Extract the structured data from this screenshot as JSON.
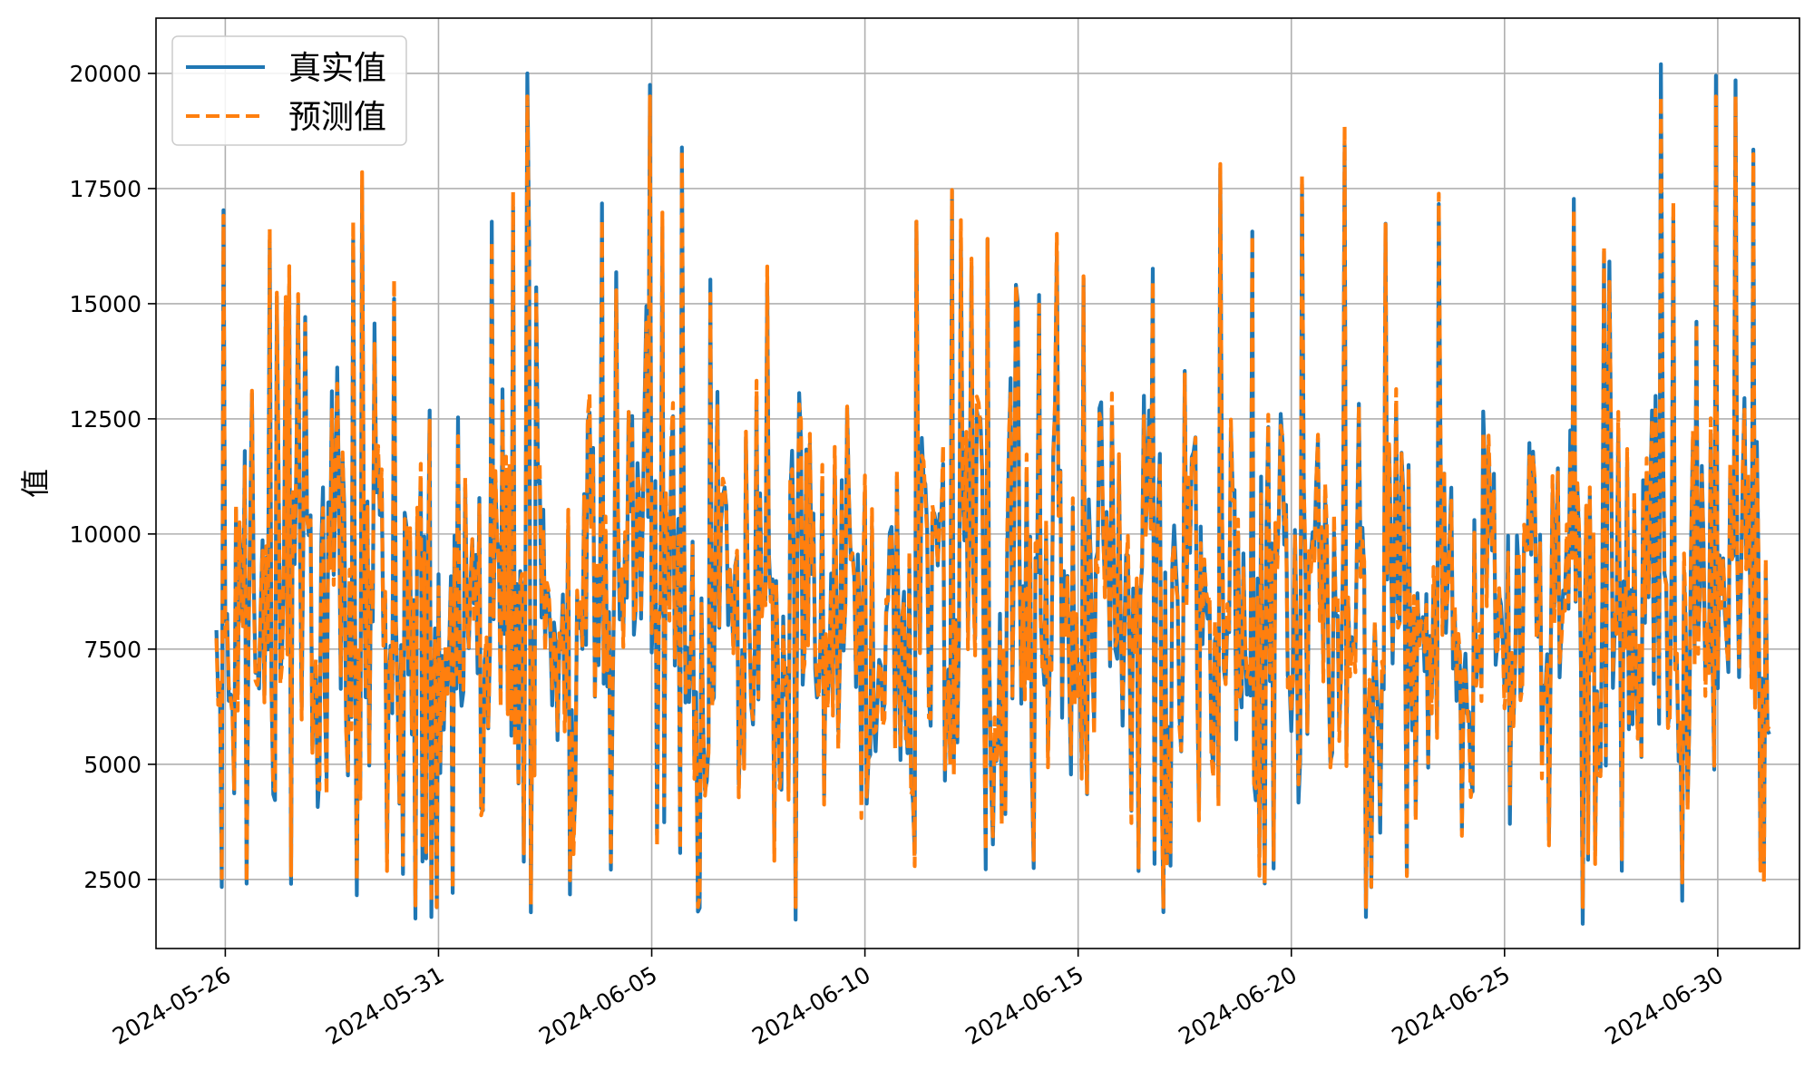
{
  "chart_data": {
    "type": "line",
    "xlabel": "",
    "ylabel": "值",
    "xlim": [
      "2024-05-24T09:00",
      "2024-07-01T22:00"
    ],
    "ylim": [
      1000,
      21200
    ],
    "x_tick_labels": [
      "2024-05-26",
      "2024-05-31",
      "2024-06-05",
      "2024-06-10",
      "2024-06-15",
      "2024-06-20",
      "2024-06-25",
      "2024-06-30"
    ],
    "y_ticks": [
      2500,
      5000,
      7500,
      10000,
      12500,
      15000,
      17500,
      20000
    ],
    "y_tick_labels": [
      "2500",
      "5000",
      "7500",
      "10000",
      "12500",
      "15000",
      "17500",
      "20000"
    ],
    "grid": true,
    "legend_position": "top-left",
    "x_range": [
      "2024-05-25T19:00",
      "2024-07-01T05:00"
    ],
    "series": [
      {
        "name": "真实值",
        "color": "#1f77b4",
        "style": "solid",
        "mean_value": 8500,
        "min_value": 1500,
        "max_value": 20200,
        "notable_peaks": [
          {
            "x": "2024-06-02T02:00",
            "y": 20000
          },
          {
            "x": "2024-06-04T23:00",
            "y": 19750
          },
          {
            "x": "2024-06-28T16:00",
            "y": 20200
          },
          {
            "x": "2024-06-29T23:00",
            "y": 19950
          },
          {
            "x": "2024-06-30T10:00",
            "y": 19850
          }
        ]
      },
      {
        "name": "预测值",
        "color": "#ff7f0e",
        "style": "dashed",
        "mean_value": 8500,
        "min_value": 1900,
        "max_value": 19500
      }
    ]
  }
}
